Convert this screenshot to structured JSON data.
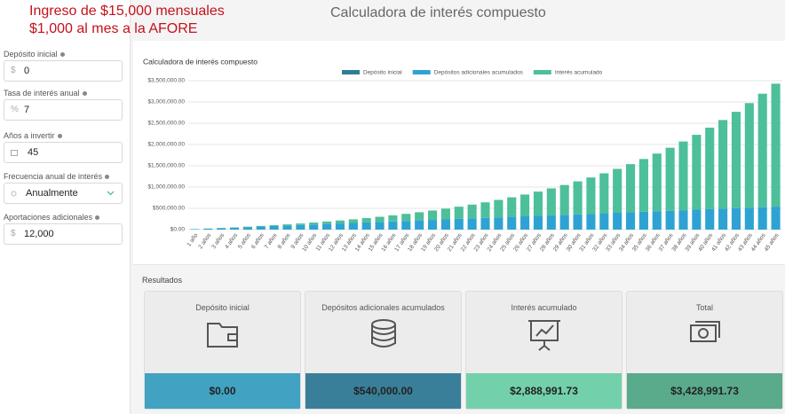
{
  "overlay": {
    "lines": [
      "Ingreso de $15,000 mensuales",
      "$1,000 al mes a la AFORE"
    ]
  },
  "header": {
    "title": "Calculadora de interés compuesto"
  },
  "form": {
    "fields": [
      {
        "label": "Depósito inicial",
        "prefix": "$",
        "value": "0"
      },
      {
        "label": "Tasa de interés anual",
        "prefix": "%",
        "value": "7"
      },
      {
        "label": "Años a invertir",
        "value": "45"
      },
      {
        "label": "Frecuencia anual de interés",
        "value": "Anualmente"
      },
      {
        "label": "Aportaciones adicionales",
        "prefix": "$",
        "value": "12,000"
      }
    ]
  },
  "chart_data": {
    "type": "bar",
    "stacked": true,
    "title": "Calculadora de interés compuesto",
    "categories": [
      "1 año",
      "2 años",
      "3 años",
      "4 años",
      "5 años",
      "6 años",
      "7 años",
      "8 años",
      "9 años",
      "10 años",
      "11 años",
      "12 años",
      "13 años",
      "14 años",
      "15 años",
      "16 años",
      "17 años",
      "18 años",
      "19 años",
      "20 años",
      "21 años",
      "22 años",
      "23 años",
      "24 años",
      "25 años",
      "26 años",
      "27 años",
      "28 años",
      "29 años",
      "30 años",
      "31 años",
      "32 años",
      "33 años",
      "34 años",
      "35 años",
      "36 años",
      "37 años",
      "38 años",
      "39 años",
      "40 años",
      "41 años",
      "42 años",
      "43 años",
      "44 años",
      "45 años"
    ],
    "series": [
      {
        "name": "Depósito inicial",
        "color": "#2f7d96",
        "values": [
          0,
          0,
          0,
          0,
          0,
          0,
          0,
          0,
          0,
          0,
          0,
          0,
          0,
          0,
          0,
          0,
          0,
          0,
          0,
          0,
          0,
          0,
          0,
          0,
          0,
          0,
          0,
          0,
          0,
          0,
          0,
          0,
          0,
          0,
          0,
          0,
          0,
          0,
          0,
          0,
          0,
          0,
          0,
          0,
          0
        ]
      },
      {
        "name": "Depósitos adicionales acumulados",
        "color": "#2ea3d3",
        "values": [
          12000,
          24000,
          36000,
          48000,
          60000,
          72000,
          84000,
          96000,
          108000,
          120000,
          132000,
          144000,
          156000,
          168000,
          180000,
          192000,
          204000,
          216000,
          228000,
          240000,
          252000,
          264000,
          276000,
          288000,
          300000,
          312000,
          324000,
          336000,
          348000,
          360000,
          372000,
          384000,
          396000,
          408000,
          420000,
          432000,
          444000,
          456000,
          468000,
          480000,
          492000,
          504000,
          516000,
          528000,
          540000
        ]
      },
      {
        "name": "Interés acumulado",
        "color": "#4dbf9b",
        "values": [
          0,
          840,
          2579,
          5279,
          9009,
          13839,
          19848,
          27118,
          35736,
          45797,
          57403,
          70661,
          85688,
          102606,
          121548,
          142657,
          166083,
          191988,
          220548,
          251946,
          286382,
          324069,
          365234,
          410120,
          458988,
          512118,
          569806,
          632372,
          700158,
          773529,
          852876,
          938618,
          1031201,
          1131105,
          1238843,
          1354961,
          1480049,
          1614732,
          1759683,
          1915621,
          2083315,
          2263587,
          2457318,
          2665450,
          2888992
        ]
      }
    ],
    "ylim": [
      0,
      3500000
    ],
    "yticks": [
      {
        "value": 0,
        "label": "$0.00"
      },
      {
        "value": 500000,
        "label": "$500,000.00"
      },
      {
        "value": 1000000,
        "label": "$1,000,000.00"
      },
      {
        "value": 1500000,
        "label": "$1,500,000.00"
      },
      {
        "value": 2000000,
        "label": "$2,000,000.00"
      },
      {
        "value": 2500000,
        "label": "$2,500,000.00"
      },
      {
        "value": 3000000,
        "label": "$3,000,000.00"
      },
      {
        "value": 3500000,
        "label": "$3,500,000.00"
      }
    ],
    "grid": true
  },
  "results": {
    "title": "Resultados",
    "cards": [
      {
        "label": "Depósito inicial",
        "value": "$0.00"
      },
      {
        "label": "Depósitos adicionales acumulados",
        "value": "$540,000.00"
      },
      {
        "label": "Interés acumulado",
        "value": "$2,888,991.73"
      },
      {
        "label": "Total",
        "value": "$3,428,991.73"
      }
    ]
  }
}
